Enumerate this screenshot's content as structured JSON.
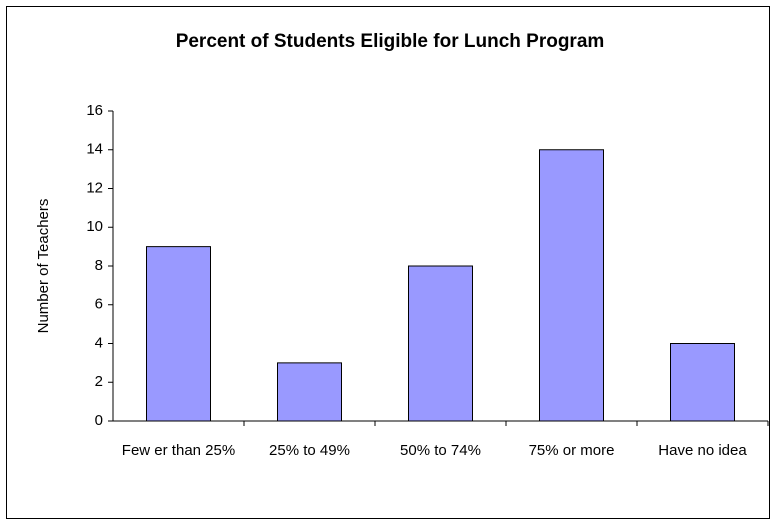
{
  "chart_data": {
    "type": "bar",
    "title": "Percent of Students Eligible for Lunch Program",
    "y_label": "Number of Teachers",
    "categories": [
      "Few er than 25%",
      "25% to 49%",
      "50% to 74%",
      "75% or more",
      "Have no idea"
    ],
    "values": [
      9,
      3,
      8,
      14,
      4
    ],
    "color": "#9999ff",
    "ylim": [
      0,
      16
    ],
    "yticks": [
      0,
      2,
      4,
      6,
      8,
      10,
      12,
      14,
      16
    ],
    "grid": false
  }
}
